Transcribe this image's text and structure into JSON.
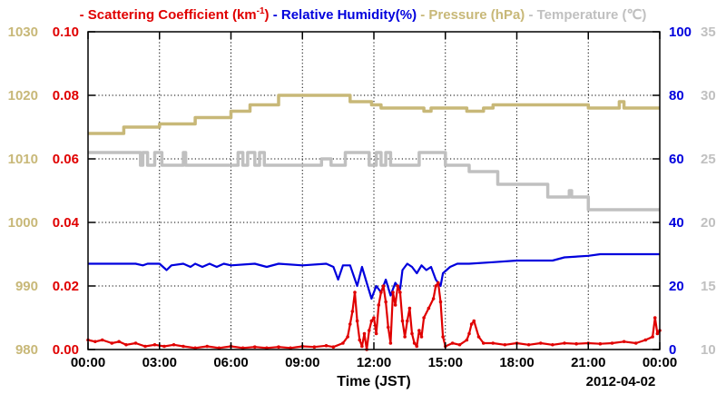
{
  "chart_data": {
    "type": "line",
    "title": "",
    "xlabel": "Time (JST)",
    "date_label": "2012-04-02",
    "x_ticks": [
      "00:00",
      "03:00",
      "06:00",
      "09:00",
      "12:00",
      "15:00",
      "18:00",
      "21:00",
      "00:00"
    ],
    "xlim_hours": [
      0,
      24
    ],
    "grid": true,
    "legend_placement": "top",
    "axes": {
      "pressure": {
        "side": "left-outer",
        "range": [
          980,
          1030
        ],
        "ticks": [
          "980",
          "990",
          "1000",
          "1010",
          "1020",
          "1030"
        ],
        "color": "#c8b878"
      },
      "scattering": {
        "side": "left-inner",
        "range": [
          0,
          0.1
        ],
        "ticks": [
          "0.00",
          "0.02",
          "0.04",
          "0.06",
          "0.08",
          "0.10"
        ],
        "color": "#e00000"
      },
      "humidity": {
        "side": "right-inner",
        "range": [
          0,
          100
        ],
        "ticks": [
          "0",
          "20",
          "40",
          "60",
          "80",
          "100"
        ],
        "color": "#0000dd"
      },
      "temperature": {
        "side": "right-outer",
        "range": [
          10,
          35
        ],
        "ticks": [
          "10",
          "15",
          "20",
          "25",
          "30",
          "35"
        ],
        "color": "#c0c0c0"
      }
    },
    "legend": [
      {
        "prefix": "- ",
        "name": "Scattering Coefficient (km",
        "sup": "-1",
        "suffix": ")",
        "color": "#e00000"
      },
      {
        "prefix": " - ",
        "name": "Relative Humidity(%)",
        "sup": "",
        "suffix": "",
        "color": "#0000dd"
      },
      {
        "prefix": " - ",
        "name": "Pressure (hPa)",
        "sup": "",
        "suffix": "",
        "color": "#c8b878"
      },
      {
        "prefix": " - ",
        "name": "Temperature (℃)",
        "sup": "",
        "suffix": "",
        "color": "#c0c0c0"
      }
    ],
    "series": [
      {
        "name": "Pressure (hPa)",
        "axis": "pressure",
        "color": "#c8b878",
        "step": true,
        "points": [
          [
            0,
            1014
          ],
          [
            1.5,
            1015
          ],
          [
            3,
            1015.5
          ],
          [
            4.5,
            1016.5
          ],
          [
            6,
            1017.5
          ],
          [
            6.8,
            1018.5
          ],
          [
            8,
            1020
          ],
          [
            11,
            1019
          ],
          [
            11.9,
            1018.5
          ],
          [
            12.3,
            1018
          ],
          [
            13.8,
            1018
          ],
          [
            14.1,
            1017.5
          ],
          [
            14.4,
            1018
          ],
          [
            15.9,
            1017.5
          ],
          [
            16.6,
            1018
          ],
          [
            17,
            1018.5
          ],
          [
            21,
            1018
          ],
          [
            22.3,
            1019
          ],
          [
            22.5,
            1018
          ],
          [
            24,
            1018
          ]
        ]
      },
      {
        "name": "Temperature (℃)",
        "axis": "temperature",
        "color": "#c0c0c0",
        "step": true,
        "points": [
          [
            0,
            25.5
          ],
          [
            2.2,
            24.5
          ],
          [
            2.3,
            25.5
          ],
          [
            2.5,
            24.5
          ],
          [
            2.8,
            25.5
          ],
          [
            3.1,
            24.5
          ],
          [
            4,
            25.5
          ],
          [
            4.1,
            24.5
          ],
          [
            6.3,
            25.5
          ],
          [
            6.5,
            24.5
          ],
          [
            6.7,
            25.5
          ],
          [
            7,
            24.5
          ],
          [
            7.2,
            25.5
          ],
          [
            7.4,
            24.5
          ],
          [
            9.8,
            25
          ],
          [
            10.2,
            24.5
          ],
          [
            10.8,
            25.5
          ],
          [
            11.8,
            24.5
          ],
          [
            12.1,
            25.5
          ],
          [
            12.3,
            24.5
          ],
          [
            12.5,
            25.5
          ],
          [
            12.7,
            24.5
          ],
          [
            13.9,
            25.5
          ],
          [
            15,
            24.5
          ],
          [
            16,
            24
          ],
          [
            17.2,
            23
          ],
          [
            19.3,
            22
          ],
          [
            20.2,
            22.5
          ],
          [
            20.3,
            22
          ],
          [
            21,
            21
          ],
          [
            24,
            21
          ]
        ]
      },
      {
        "name": "Relative Humidity(%)",
        "axis": "humidity",
        "color": "#0000dd",
        "step": false,
        "points": [
          [
            0,
            27
          ],
          [
            2,
            27
          ],
          [
            2.3,
            26.5
          ],
          [
            2.5,
            27
          ],
          [
            3,
            27
          ],
          [
            3.3,
            25
          ],
          [
            3.5,
            26.5
          ],
          [
            4,
            27
          ],
          [
            4.3,
            26
          ],
          [
            4.5,
            27
          ],
          [
            4.8,
            26
          ],
          [
            5.1,
            27
          ],
          [
            5.4,
            26
          ],
          [
            5.7,
            27
          ],
          [
            6,
            26.5
          ],
          [
            7,
            27
          ],
          [
            7.5,
            26
          ],
          [
            8,
            27
          ],
          [
            9,
            26.5
          ],
          [
            10,
            27
          ],
          [
            10.3,
            26
          ],
          [
            10.5,
            22
          ],
          [
            10.7,
            26.5
          ],
          [
            11,
            26.5
          ],
          [
            11.3,
            20
          ],
          [
            11.5,
            26
          ],
          [
            11.7,
            21
          ],
          [
            11.9,
            16
          ],
          [
            12.1,
            20
          ],
          [
            12.3,
            18
          ],
          [
            12.5,
            22
          ],
          [
            12.7,
            17
          ],
          [
            12.9,
            21
          ],
          [
            13.1,
            19
          ],
          [
            13.2,
            25
          ],
          [
            13.4,
            27
          ],
          [
            13.6,
            26
          ],
          [
            13.8,
            24
          ],
          [
            14,
            26.5
          ],
          [
            14.2,
            25
          ],
          [
            14.4,
            26
          ],
          [
            14.6,
            22
          ],
          [
            14.8,
            20
          ],
          [
            14.9,
            24
          ],
          [
            15.2,
            26
          ],
          [
            15.5,
            27
          ],
          [
            16,
            27
          ],
          [
            17,
            27.5
          ],
          [
            18,
            28
          ],
          [
            19.5,
            28
          ],
          [
            20,
            29
          ],
          [
            21,
            29.5
          ],
          [
            21.5,
            30
          ],
          [
            24,
            30
          ]
        ]
      },
      {
        "name": "Scattering Coefficient (km-1)",
        "axis": "scattering",
        "color": "#e00000",
        "step": false,
        "markers": true,
        "points": [
          [
            0,
            0.003
          ],
          [
            0.3,
            0.0025
          ],
          [
            0.6,
            0.003
          ],
          [
            1,
            0.002
          ],
          [
            1.3,
            0.0025
          ],
          [
            1.6,
            0.0015
          ],
          [
            2,
            0.002
          ],
          [
            2.4,
            0.001
          ],
          [
            2.8,
            0.0015
          ],
          [
            3.2,
            0.001
          ],
          [
            3.6,
            0.0015
          ],
          [
            4,
            0.001
          ],
          [
            4.5,
            0.0005
          ],
          [
            5,
            0.001
          ],
          [
            5.5,
            0.0005
          ],
          [
            6,
            0.001
          ],
          [
            6.5,
            0.0005
          ],
          [
            7,
            0.0008
          ],
          [
            7.5,
            0.0005
          ],
          [
            8,
            0.0008
          ],
          [
            8.5,
            0.0005
          ],
          [
            9,
            0.001
          ],
          [
            9.5,
            0.0008
          ],
          [
            10,
            0.0012
          ],
          [
            10.3,
            0.0008
          ],
          [
            10.7,
            0.002
          ],
          [
            10.9,
            0.004
          ],
          [
            11,
            0.008
          ],
          [
            11.1,
            0.012
          ],
          [
            11.2,
            0.018
          ],
          [
            11.3,
            0.009
          ],
          [
            11.4,
            0.003
          ],
          [
            11.5,
            0.001
          ],
          [
            11.6,
            0.005
          ],
          [
            11.7,
            0.0
          ],
          [
            11.8,
            0.006
          ],
          [
            11.9,
            0.009
          ],
          [
            12,
            0.01
          ],
          [
            12.1,
            0.005
          ],
          [
            12.2,
            0.014
          ],
          [
            12.3,
            0.018
          ],
          [
            12.4,
            0.02
          ],
          [
            12.5,
            0.015
          ],
          [
            12.6,
            0.007
          ],
          [
            12.7,
            0.002
          ],
          [
            12.8,
            0.018
          ],
          [
            12.9,
            0.014
          ],
          [
            13,
            0.02
          ],
          [
            13.1,
            0.018
          ],
          [
            13.2,
            0.009
          ],
          [
            13.3,
            0.004
          ],
          [
            13.4,
            0.009
          ],
          [
            13.5,
            0.013
          ],
          [
            13.6,
            0.005
          ],
          [
            13.7,
            0.002
          ],
          [
            13.8,
            0.001
          ],
          [
            13.9,
            0.006
          ],
          [
            14,
            0.004
          ],
          [
            14.1,
            0.01
          ],
          [
            14.3,
            0.013
          ],
          [
            14.5,
            0.016
          ],
          [
            14.6,
            0.02
          ],
          [
            14.7,
            0.021
          ],
          [
            14.8,
            0.015
          ],
          [
            14.9,
            0.004
          ],
          [
            15,
            0.001
          ],
          [
            15.3,
            0.002
          ],
          [
            15.6,
            0.0015
          ],
          [
            15.9,
            0.003
          ],
          [
            16,
            0.005
          ],
          [
            16.1,
            0.008
          ],
          [
            16.2,
            0.009
          ],
          [
            16.4,
            0.004
          ],
          [
            16.6,
            0.002
          ],
          [
            17,
            0.002
          ],
          [
            17.5,
            0.0015
          ],
          [
            18,
            0.002
          ],
          [
            18.5,
            0.0015
          ],
          [
            19,
            0.002
          ],
          [
            19.5,
            0.0015
          ],
          [
            20,
            0.002
          ],
          [
            20.5,
            0.0018
          ],
          [
            21,
            0.002
          ],
          [
            21.5,
            0.0018
          ],
          [
            22,
            0.002
          ],
          [
            22.5,
            0.0025
          ],
          [
            23,
            0.002
          ],
          [
            23.4,
            0.003
          ],
          [
            23.7,
            0.004
          ],
          [
            23.8,
            0.01
          ],
          [
            23.9,
            0.005
          ],
          [
            24,
            0.006
          ]
        ]
      }
    ]
  }
}
